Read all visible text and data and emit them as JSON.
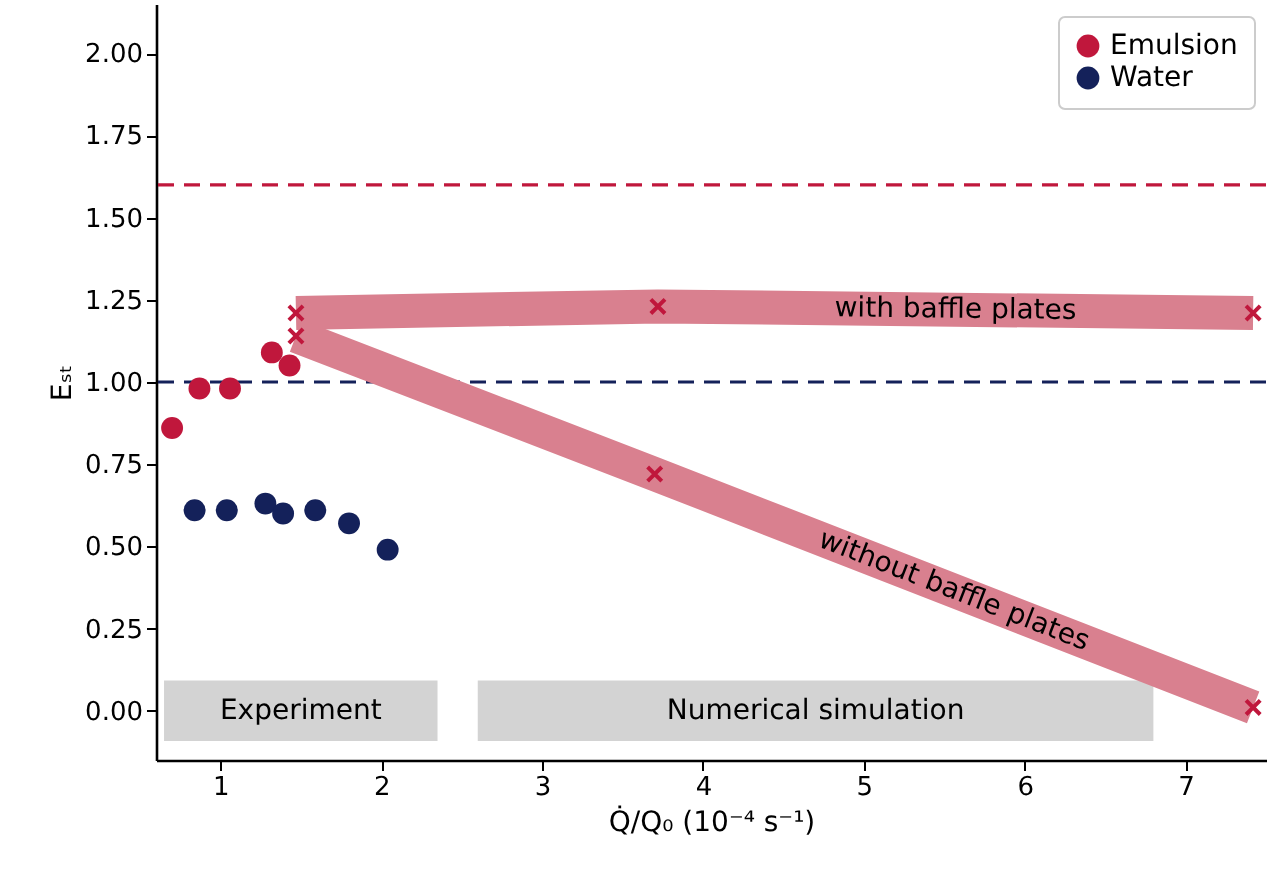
{
  "chart_data": {
    "type": "scatter",
    "xlabel": "Q̇/Q₀ (10⁻⁴ s⁻¹)",
    "ylabel": "Eₛₜ",
    "xlim": [
      0.6,
      7.5
    ],
    "ylim": [
      -0.15,
      2.15
    ],
    "xticks": [
      1,
      2,
      3,
      4,
      5,
      6,
      7
    ],
    "yticks": [
      {
        "value": 0,
        "label": "0.00"
      },
      {
        "value": 0.25,
        "label": "0.25"
      },
      {
        "value": 0.5,
        "label": "0.50"
      },
      {
        "value": 0.75,
        "label": "0.75"
      },
      {
        "value": 1,
        "label": "1.00"
      },
      {
        "value": 1.25,
        "label": "1.25"
      },
      {
        "value": 1.5,
        "label": "1.50"
      },
      {
        "value": 1.75,
        "label": "1.75"
      },
      {
        "value": 2,
        "label": "2.00"
      }
    ],
    "grid": false,
    "legend": "top right",
    "marker": "circle",
    "series": [
      {
        "name": "Emulsion",
        "color": "#c0173c",
        "x": [
          0.7,
          0.87,
          1.06,
          1.32,
          1.43
        ],
        "values": [
          0.86,
          0.98,
          0.98,
          1.09,
          1.05
        ]
      },
      {
        "name": "Water",
        "color": "#14215a",
        "x": [
          0.84,
          1.04,
          1.28,
          1.39,
          1.59,
          1.8,
          2.04
        ],
        "values": [
          0.61,
          0.61,
          0.63,
          0.6,
          0.61,
          0.57,
          0.49
        ]
      },
      {
        "name": "with baffle plates",
        "type": "line",
        "marker": "none",
        "color": "#d9808f",
        "x": [
          1.47,
          3.72,
          7.42
        ],
        "values": [
          1.21,
          1.23,
          1.21
        ]
      },
      {
        "name": "without baffle plates",
        "type": "line",
        "marker": "none",
        "color": "#d9808f",
        "x": [
          1.47,
          3.7,
          7.42
        ],
        "values": [
          1.14,
          0.72,
          0.01
        ]
      },
      {
        "color": "#c0173c",
        "marker": "cross",
        "x": [
          1.47,
          1.47,
          3.72,
          3.7,
          7.42,
          7.42
        ],
        "values": [
          1.21,
          1.14,
          1.23,
          0.72,
          1.21,
          0.01
        ]
      }
    ],
    "ref_lines": [
      {
        "axis": "y",
        "value": 1.6,
        "color": "#c0173c",
        "line_style": "dashed"
      },
      {
        "axis": "y",
        "value": 1.0,
        "color": "#14215a",
        "line_style": "dashed"
      }
    ],
    "bands": [
      {
        "axis": "x",
        "from": 0.65,
        "to": 2.35,
        "label": "Experiment",
        "color": "#d3d3d3"
      },
      {
        "axis": "x",
        "from": 2.6,
        "to": 6.8,
        "label": "Numerical simulation",
        "color": "#d3d3d3"
      }
    ]
  }
}
